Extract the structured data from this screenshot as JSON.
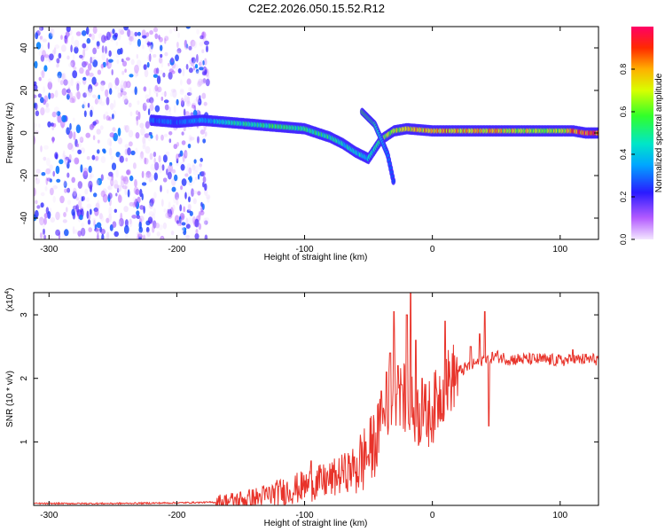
{
  "figure_title": "C2E2.2026.050.15.52.R12",
  "colors": {
    "line": "#e8332a",
    "axis": "#000000",
    "spectro_low": "#8a2be2",
    "background": "#ffffff"
  },
  "colorbar": {
    "label": "Normalized spectral amplitude",
    "ticks": [
      "0.0",
      "0.2",
      "0.4",
      "0.6",
      "0.8"
    ],
    "tick_values": [
      0.0,
      0.2,
      0.4,
      0.6,
      0.8
    ]
  },
  "chart_data": [
    {
      "type": "heatmap",
      "title": "C2E2.2026.050.15.52.R12",
      "xlabel": "Height of straight line (km)",
      "ylabel": "Frequency (Hz)",
      "xlim": [
        -312,
        130
      ],
      "ylim": [
        -50,
        50
      ],
      "xticks": [
        -300,
        -200,
        -100,
        0,
        100
      ],
      "xtick_labels": [
        "-300",
        "-200",
        "-100",
        "0",
        "100"
      ],
      "yticks": [
        -40,
        -20,
        0,
        20,
        40
      ],
      "ytick_labels": [
        "-40",
        "-20",
        "0",
        "20",
        "40"
      ],
      "noise_region_x": [
        -312,
        -175
      ],
      "ridge": {
        "x": [
          -220,
          -200,
          -180,
          -160,
          -140,
          -120,
          -100,
          -90,
          -80,
          -70,
          -60,
          -50,
          -40,
          -30,
          -20,
          0,
          20,
          40,
          60,
          80,
          100,
          110,
          120,
          130
        ],
        "y": [
          6,
          5,
          6,
          5,
          4,
          3,
          2,
          0,
          -2,
          -5,
          -9,
          -12,
          -3,
          1,
          2,
          1,
          1,
          1,
          1,
          1,
          1,
          1,
          0,
          0
        ],
        "amplitude": [
          0.3,
          0.3,
          0.35,
          0.45,
          0.5,
          0.55,
          0.5,
          0.55,
          0.5,
          0.45,
          0.45,
          0.4,
          0.6,
          0.7,
          0.75,
          0.8,
          0.8,
          0.8,
          0.75,
          0.7,
          0.7,
          0.85,
          0.95,
          0.9
        ]
      },
      "branch": {
        "x": [
          -55,
          -50,
          -45,
          -40,
          -35,
          -30
        ],
        "y": [
          10,
          7,
          4,
          -3,
          -10,
          -24
        ],
        "amplitude": [
          0.6,
          0.55,
          0.5,
          0.4,
          0.3,
          0.25
        ]
      }
    },
    {
      "type": "line",
      "xlabel": "Height of straight line (km)",
      "ylabel": "SNR (10 * v/v)",
      "multiplier_label": "(x10",
      "multiplier_exponent": "4",
      "multiplier_suffix": ")",
      "xlim": [
        -312,
        130
      ],
      "ylim": [
        0,
        3.35
      ],
      "xticks": [
        -300,
        -200,
        -100,
        0,
        100
      ],
      "xtick_labels": [
        "-300",
        "-200",
        "-100",
        "0",
        "100"
      ],
      "yticks": [
        1,
        2,
        3
      ],
      "ytick_labels": [
        "1",
        "2",
        "3"
      ],
      "series": [
        {
          "name": "SNR",
          "x": [
            -312,
            -250,
            -200,
            -170,
            -140,
            -120,
            -100,
            -80,
            -60,
            -50,
            -40,
            -35,
            -30,
            -25,
            -20,
            -15,
            -10,
            -5,
            0,
            5,
            10,
            20,
            30,
            40,
            50,
            60,
            80,
            100,
            120,
            130
          ],
          "y": [
            0.03,
            0.03,
            0.04,
            0.05,
            0.1,
            0.2,
            0.3,
            0.4,
            0.6,
            0.8,
            1.2,
            1.6,
            1.8,
            1.8,
            1.6,
            1.5,
            1.4,
            1.4,
            1.5,
            1.7,
            1.9,
            2.1,
            2.2,
            2.3,
            2.35,
            2.3,
            2.3,
            2.28,
            2.3,
            2.3
          ],
          "spikes": [
            {
              "x": -120,
              "y": 0.3
            },
            {
              "x": -95,
              "y": 0.7
            },
            {
              "x": -70,
              "y": 0.55
            },
            {
              "x": -52,
              "y": 1.0
            },
            {
              "x": -40,
              "y": 1.8
            },
            {
              "x": -36,
              "y": 2.1
            },
            {
              "x": -33,
              "y": 2.4
            },
            {
              "x": -30,
              "y": 3.05
            },
            {
              "x": -27,
              "y": 2.2
            },
            {
              "x": -24,
              "y": 1.9
            },
            {
              "x": -20,
              "y": 3.0
            },
            {
              "x": -17,
              "y": 3.35
            },
            {
              "x": -13,
              "y": 2.6
            },
            {
              "x": -8,
              "y": 2.0
            },
            {
              "x": 10,
              "y": 2.9
            },
            {
              "x": 30,
              "y": 2.5
            },
            {
              "x": 37,
              "y": 2.7
            },
            {
              "x": 41,
              "y": 3.05
            },
            {
              "x": 44,
              "y": 1.25
            },
            {
              "x": 110,
              "y": 2.45
            }
          ]
        }
      ]
    }
  ]
}
